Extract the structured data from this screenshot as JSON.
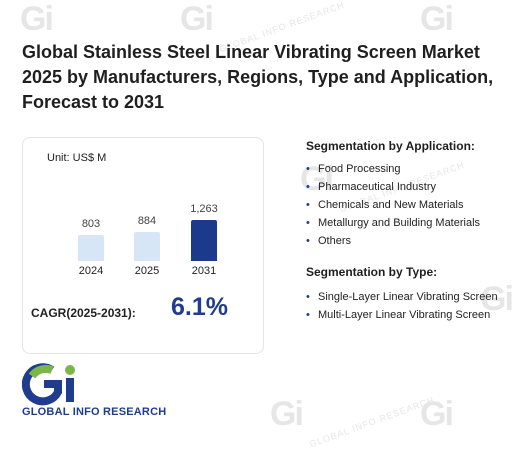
{
  "title": "Global Stainless Steel Linear Vibrating Screen Market 2025 by Manufacturers, Regions, Type and Application, Forecast to 2031",
  "chart_data": {
    "type": "bar",
    "unit_label": "Unit: US$ M",
    "categories": [
      "2024",
      "2025",
      "2031"
    ],
    "values": [
      803,
      884,
      1263
    ],
    "value_labels": [
      "803",
      "884",
      "1,263"
    ],
    "colors": [
      "#d6e6f7",
      "#d6e6f7",
      "#1b3a8c"
    ]
  },
  "cagr": {
    "label": "CAGR(2025-2031):",
    "value": "6.1%"
  },
  "segmentation_application": {
    "title": "Segmentation by Application:",
    "items": [
      "Food Processing",
      "Pharmaceutical Industry",
      "Chemicals and New Materials",
      "Metallurgy and Building Materials",
      "Others"
    ]
  },
  "segmentation_type": {
    "title": "Segmentation by Type:",
    "items": [
      "Single-Layer Linear Vibrating Screen",
      "Multi-Layer Linear Vibrating Screen"
    ]
  },
  "logo": {
    "text": "GLOBAL INFO RESEARCH"
  },
  "watermark": {
    "text": "GLOBAL INFO RESEARCH"
  }
}
